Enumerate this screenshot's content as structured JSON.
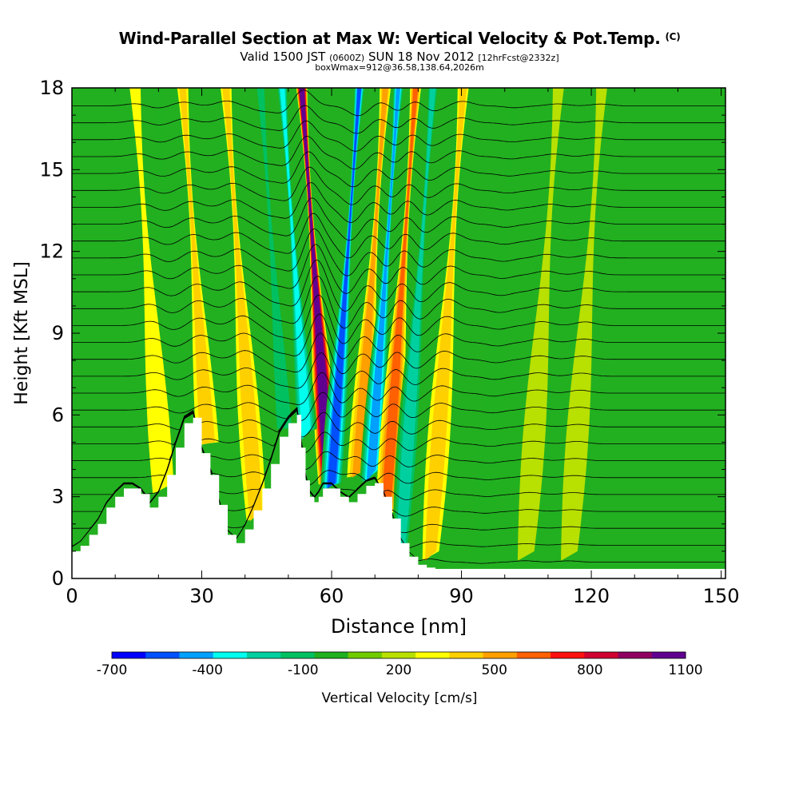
{
  "header": {
    "title": "Wind-Parallel Section at Max W: Vertical Velocity & Pot.Temp.",
    "copyright": "(C)",
    "subtitle_a": "Valid 1500 JST",
    "subtitle_b": "(0600Z)",
    "subtitle_c": "SUN 18 Nov 2012",
    "subtitle_d": "[12hrFcst@2332z]",
    "boxinfo": "boxWmax=912@36.58,138.64,2026m"
  },
  "chart_data": {
    "type": "heatmap",
    "title": "Wind-Parallel Section at Max W: Vertical Velocity & Pot.Temp.",
    "xlabel": "Distance [nm]",
    "ylabel": "Height [Kft MSL]",
    "xlim": [
      0,
      151
    ],
    "ylim": [
      0,
      18
    ],
    "xticks": [
      0,
      30,
      60,
      90,
      120,
      150
    ],
    "yticks": [
      0,
      3,
      6,
      9,
      12,
      15,
      18
    ],
    "terrain": {
      "x": [
        0,
        2,
        4,
        6,
        8,
        10,
        12,
        14,
        16,
        18,
        20,
        22,
        24,
        26,
        28,
        30,
        32,
        34,
        36,
        38,
        40,
        42,
        44,
        46,
        48,
        50,
        52,
        53,
        54,
        55,
        56,
        57,
        58,
        60,
        62,
        64,
        66,
        68,
        70,
        72,
        74,
        76,
        78,
        80,
        82,
        84,
        151
      ],
      "height": [
        1.0,
        1.2,
        1.6,
        2.0,
        2.6,
        3.0,
        3.3,
        3.3,
        3.1,
        2.6,
        3.0,
        3.8,
        4.8,
        5.7,
        5.9,
        4.6,
        3.8,
        2.7,
        1.6,
        1.3,
        1.8,
        2.5,
        3.3,
        4.2,
        5.2,
        5.7,
        6.0,
        4.8,
        3.6,
        3.0,
        2.8,
        3.0,
        3.3,
        3.3,
        3.0,
        2.8,
        3.1,
        3.4,
        3.5,
        3.0,
        2.2,
        1.3,
        0.8,
        0.5,
        0.4,
        0.35,
        0.35
      ]
    },
    "w_bands": [
      {
        "x": 57.5,
        "w": 1100
      },
      {
        "x": 53,
        "w": -500
      },
      {
        "x": 62,
        "w": -650
      },
      {
        "x": 68,
        "w": 400
      },
      {
        "x": 71,
        "w": -550
      },
      {
        "x": 75,
        "w": 450
      },
      {
        "x": 79,
        "w": -400
      },
      {
        "x": 86,
        "w": 300
      },
      {
        "x": 48,
        "w": -300
      },
      {
        "x": 40,
        "w": 320
      },
      {
        "x": 30,
        "w": 250
      },
      {
        "x": 24,
        "w": -150
      },
      {
        "x": 19,
        "w": 150
      },
      {
        "x": 98,
        "w": -120
      },
      {
        "x": 108,
        "w": 130
      },
      {
        "x": 118,
        "w": 120
      }
    ],
    "theta_contours": 28,
    "colorbar": {
      "label": "Vertical Velocity [cm/s]",
      "tick_labels": [
        "-700",
        "-400",
        "-100",
        "200",
        "500",
        "800",
        "1100"
      ],
      "colors": [
        "#0000ff",
        "#0050ff",
        "#00a0ff",
        "#00ffee",
        "#00d0a0",
        "#00c060",
        "#20b020",
        "#70cc00",
        "#b8e000",
        "#ffff00",
        "#ffd000",
        "#ffa000",
        "#ff6000",
        "#ff1010",
        "#d00030",
        "#900060",
        "#600090"
      ]
    }
  }
}
